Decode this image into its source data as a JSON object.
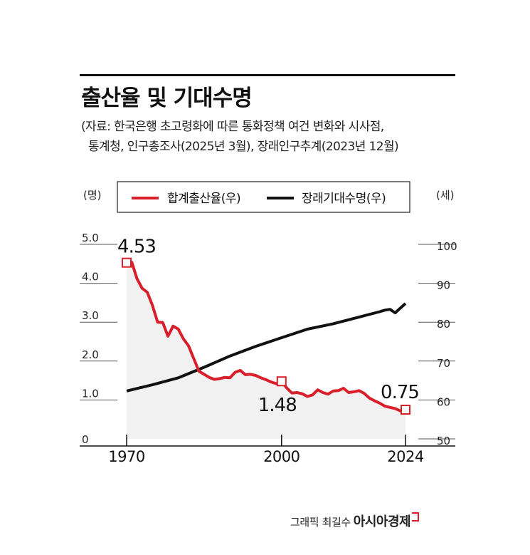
{
  "header": {
    "title": "출산율 및 기대수명",
    "source_line1": "(자료: 한국은행 초고령화에 따른 통화정책 여건 변화와 시사점,",
    "source_line2": "통계청, 인구총조사(2025년 3월), 장래인구추계(2023년 12월)"
  },
  "credit": {
    "text": "그래픽 최길수",
    "brand": "아시아경제"
  },
  "colors": {
    "fertility": "#d81f2a",
    "life_expectancy": "#111111",
    "area_fill": "#f1f1f2"
  },
  "chart_data": {
    "type": "line",
    "left_axis": {
      "unit": "(명)",
      "ticks": [
        "0",
        "1.0",
        "2.0",
        "3.0",
        "4.0",
        "5.0"
      ],
      "range": [
        0,
        5
      ]
    },
    "right_axis": {
      "unit": "(세)",
      "ticks": [
        "50",
        "60",
        "70",
        "80",
        "90",
        "100"
      ],
      "range": [
        50,
        100
      ]
    },
    "x_ticks": [
      "1970",
      "2000",
      "2024"
    ],
    "x_range": [
      1970,
      2024
    ],
    "legend": {
      "placement": "top"
    },
    "series": [
      {
        "name": "합계출산율(우)",
        "axis": "left",
        "x": [
          1970,
          1971,
          1972,
          1973,
          1974,
          1975,
          1976,
          1977,
          1978,
          1979,
          1980,
          1981,
          1982,
          1983,
          1984,
          1985,
          1986,
          1987,
          1988,
          1989,
          1990,
          1991,
          1992,
          1993,
          1994,
          1995,
          1996,
          1997,
          1998,
          1999,
          2000,
          2001,
          2002,
          2003,
          2004,
          2005,
          2006,
          2007,
          2008,
          2009,
          2010,
          2011,
          2012,
          2013,
          2014,
          2015,
          2016,
          2017,
          2018,
          2019,
          2020,
          2021,
          2022,
          2023,
          2024
        ],
        "values": [
          4.53,
          4.54,
          4.12,
          3.87,
          3.77,
          3.43,
          3.0,
          2.99,
          2.64,
          2.9,
          2.82,
          2.57,
          2.39,
          2.06,
          1.74,
          1.66,
          1.58,
          1.53,
          1.55,
          1.58,
          1.57,
          1.71,
          1.76,
          1.65,
          1.66,
          1.63,
          1.57,
          1.52,
          1.46,
          1.42,
          1.48,
          1.31,
          1.18,
          1.19,
          1.16,
          1.09,
          1.13,
          1.26,
          1.19,
          1.15,
          1.23,
          1.24,
          1.3,
          1.19,
          1.21,
          1.24,
          1.17,
          1.05,
          0.98,
          0.92,
          0.84,
          0.81,
          0.78,
          0.72,
          0.75
        ],
        "labels": [
          {
            "x": 1970,
            "text": "4.53"
          },
          {
            "x": 2000,
            "text": "1.48"
          },
          {
            "x": 2024,
            "text": "0.75"
          }
        ]
      },
      {
        "name": "장래기대수명(우)",
        "axis": "right",
        "x": [
          1970,
          1975,
          1980,
          1985,
          1990,
          1995,
          2000,
          2005,
          2010,
          2015,
          2019,
          2020,
          2021,
          2022,
          2023,
          2024
        ],
        "values": [
          62.3,
          63.9,
          65.7,
          68.4,
          71.3,
          73.8,
          76.0,
          78.2,
          79.6,
          81.3,
          82.7,
          83.1,
          83.3,
          82.4,
          83.6,
          84.8
        ]
      }
    ]
  }
}
